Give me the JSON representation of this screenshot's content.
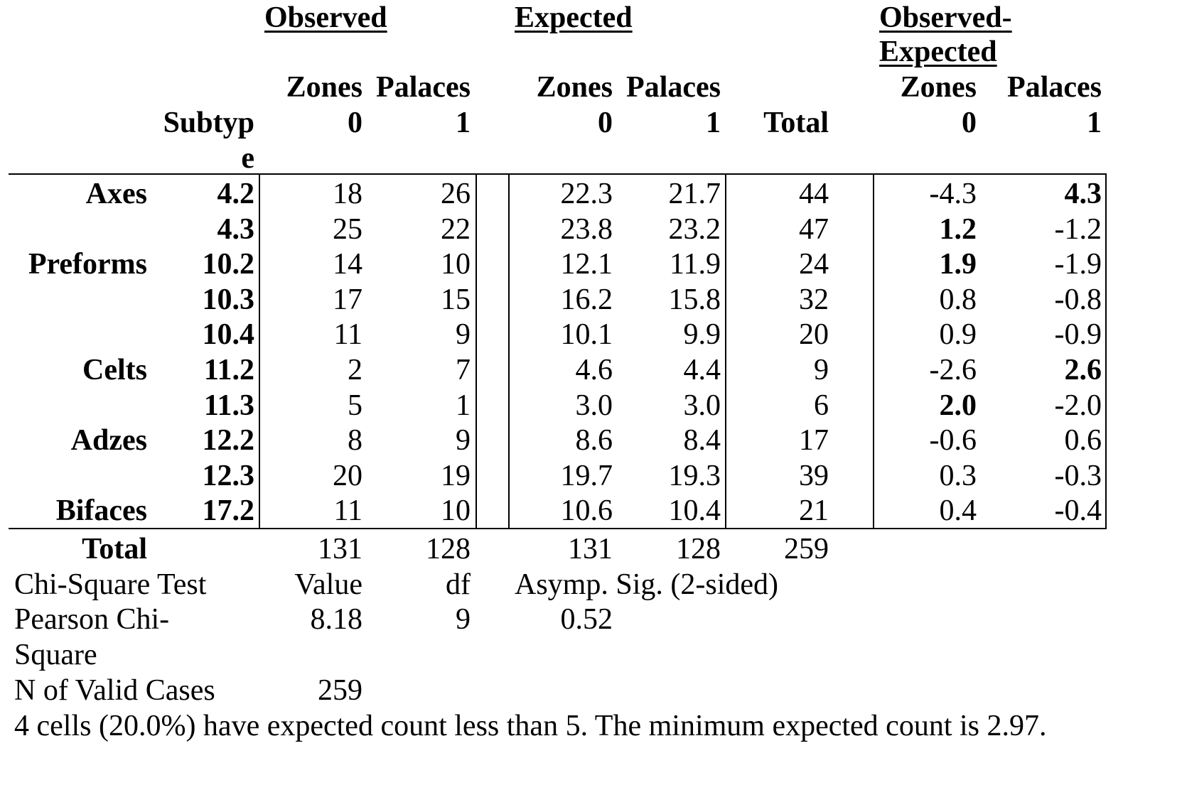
{
  "headers": {
    "observed": "Observed",
    "expected": "Expected",
    "diff_line1": "Observed-",
    "diff_line2": "Expected",
    "zones": "Zones",
    "palaces": "Palaces",
    "col0": "0",
    "col1": "1",
    "subtype_line1": "Subtyp",
    "subtype_line2": "e",
    "total": "Total"
  },
  "rows": [
    {
      "group": "Axes",
      "subtype": "4.2",
      "obs0": "18",
      "obs1": "26",
      "exp0": "22.3",
      "exp1": "21.7",
      "total": "44",
      "diff0": "-4.3",
      "diff1": "4.3",
      "bold0": false,
      "bold1": true
    },
    {
      "group": "",
      "subtype": "4.3",
      "obs0": "25",
      "obs1": "22",
      "exp0": "23.8",
      "exp1": "23.2",
      "total": "47",
      "diff0": "1.2",
      "diff1": "-1.2",
      "bold0": true,
      "bold1": false
    },
    {
      "group": "Preforms",
      "subtype": "10.2",
      "obs0": "14",
      "obs1": "10",
      "exp0": "12.1",
      "exp1": "11.9",
      "total": "24",
      "diff0": "1.9",
      "diff1": "-1.9",
      "bold0": true,
      "bold1": false
    },
    {
      "group": "",
      "subtype": "10.3",
      "obs0": "17",
      "obs1": "15",
      "exp0": "16.2",
      "exp1": "15.8",
      "total": "32",
      "diff0": "0.8",
      "diff1": "-0.8",
      "bold0": false,
      "bold1": false
    },
    {
      "group": "",
      "subtype": "10.4",
      "obs0": "11",
      "obs1": "9",
      "exp0": "10.1",
      "exp1": "9.9",
      "total": "20",
      "diff0": "0.9",
      "diff1": "-0.9",
      "bold0": false,
      "bold1": false
    },
    {
      "group": "Celts",
      "subtype": "11.2",
      "obs0": "2",
      "obs1": "7",
      "exp0": "4.6",
      "exp1": "4.4",
      "total": "9",
      "diff0": "-2.6",
      "diff1": "2.6",
      "bold0": false,
      "bold1": true
    },
    {
      "group": "",
      "subtype": "11.3",
      "obs0": "5",
      "obs1": "1",
      "exp0": "3.0",
      "exp1": "3.0",
      "total": "6",
      "diff0": "2.0",
      "diff1": "-2.0",
      "bold0": true,
      "bold1": false
    },
    {
      "group": "Adzes",
      "subtype": "12.2",
      "obs0": "8",
      "obs1": "9",
      "exp0": "8.6",
      "exp1": "8.4",
      "total": "17",
      "diff0": "-0.6",
      "diff1": "0.6",
      "bold0": false,
      "bold1": false
    },
    {
      "group": "",
      "subtype": "12.3",
      "obs0": "20",
      "obs1": "19",
      "exp0": "19.7",
      "exp1": "19.3",
      "total": "39",
      "diff0": "0.3",
      "diff1": "-0.3",
      "bold0": false,
      "bold1": false
    },
    {
      "group": "Bifaces",
      "subtype": "17.2",
      "obs0": "11",
      "obs1": "10",
      "exp0": "10.6",
      "exp1": "10.4",
      "total": "21",
      "diff0": "0.4",
      "diff1": "-0.4",
      "bold0": false,
      "bold1": false
    }
  ],
  "totals": {
    "label": "Total",
    "obs0": "131",
    "obs1": "128",
    "exp0": "131",
    "exp1": "128",
    "total": "259"
  },
  "chi_square": {
    "title": "Chi-Square Test",
    "value_header": "Value",
    "df_header": "df",
    "sig_header": "Asymp. Sig. (2-sided)",
    "pearson_line1": "Pearson Chi-",
    "pearson_line2": "Square",
    "value": "8.18",
    "df": "9",
    "sig": "0.52",
    "n_label": "N of Valid Cases",
    "n_value": "259"
  },
  "footnote": "4 cells (20.0%) have expected count less than 5.  The minimum expected count is 2.97."
}
